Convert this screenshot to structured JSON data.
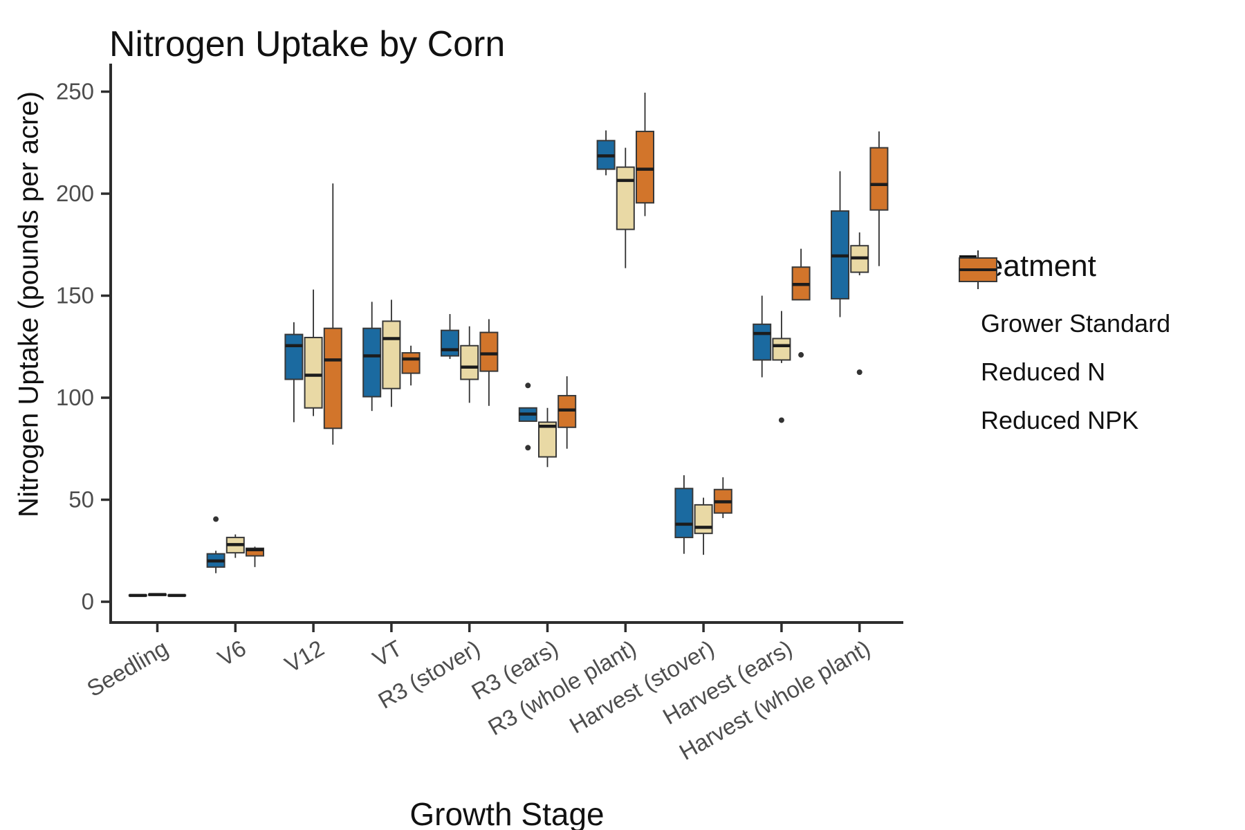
{
  "chart_data": {
    "type": "boxplot",
    "title": "Nitrogen Uptake by Corn",
    "xlabel": "Growth Stage",
    "ylabel": "Nitrogen Uptake (pounds per acre)",
    "legend_title": "Treatment",
    "legend_position": "right",
    "grid": false,
    "ylim": [
      -10,
      264
    ],
    "yticks": [
      0,
      50,
      100,
      150,
      200,
      250
    ],
    "axis_color": "#2d2d2d",
    "tick_label_color": "#4d4d4d",
    "categories": [
      "Seedling",
      "V6",
      "V12",
      "VT",
      "R3 (stover)",
      "R3 (ears)",
      "R3 (whole plant)",
      "Harvest (stover)",
      "Harvest (ears)",
      "Harvest (whole plant)"
    ],
    "series": [
      {
        "name": "Grower Standard",
        "color": "#1b6aa0"
      },
      {
        "name": "Reduced N",
        "color": "#e9d9a5"
      },
      {
        "name": "Reduced NPK",
        "color": "#d2752b"
      }
    ],
    "boxes": [
      [
        {
          "lo": 2.8,
          "q1": 2.9,
          "med": 3.1,
          "q3": 3.3,
          "hi": 3.4,
          "out": []
        },
        {
          "lo": 3.0,
          "q1": 3.2,
          "med": 3.5,
          "q3": 3.7,
          "hi": 3.8,
          "out": []
        },
        {
          "lo": 2.7,
          "q1": 2.9,
          "med": 3.1,
          "q3": 3.3,
          "hi": 3.4,
          "out": []
        }
      ],
      [
        {
          "lo": 14,
          "q1": 17,
          "med": 20,
          "q3": 23.5,
          "hi": 25,
          "out": [
            40.5
          ]
        },
        {
          "lo": 21.5,
          "q1": 24,
          "med": 28,
          "q3": 31.5,
          "hi": 33,
          "out": []
        },
        {
          "lo": 17,
          "q1": 22.5,
          "med": 25.5,
          "q3": 26.2,
          "hi": 27,
          "out": []
        }
      ],
      [
        {
          "lo": 88,
          "q1": 109,
          "med": 125.5,
          "q3": 131,
          "hi": 137,
          "out": []
        },
        {
          "lo": 91,
          "q1": 95,
          "med": 111,
          "q3": 129.5,
          "hi": 153,
          "out": []
        },
        {
          "lo": 77,
          "q1": 85,
          "med": 118.5,
          "q3": 134,
          "hi": 205,
          "out": []
        }
      ],
      [
        {
          "lo": 93.5,
          "q1": 100.5,
          "med": 120.5,
          "q3": 134,
          "hi": 147,
          "out": []
        },
        {
          "lo": 95.5,
          "q1": 104.5,
          "med": 129,
          "q3": 137.5,
          "hi": 148,
          "out": []
        },
        {
          "lo": 106,
          "q1": 112,
          "med": 119,
          "q3": 122,
          "hi": 125.5,
          "out": []
        }
      ],
      [
        {
          "lo": 119,
          "q1": 120.5,
          "med": 123.5,
          "q3": 133,
          "hi": 141,
          "out": []
        },
        {
          "lo": 97.5,
          "q1": 109,
          "med": 115,
          "q3": 125.5,
          "hi": 135,
          "out": []
        },
        {
          "lo": 96,
          "q1": 113,
          "med": 121.5,
          "q3": 132,
          "hi": 138.5,
          "out": []
        }
      ],
      [
        {
          "lo": 88.5,
          "q1": 88.5,
          "med": 92,
          "q3": 95,
          "hi": 95,
          "out": [
            106,
            75.5
          ]
        },
        {
          "lo": 66,
          "q1": 71,
          "med": 86,
          "q3": 88,
          "hi": 95,
          "out": []
        },
        {
          "lo": 75,
          "q1": 85.5,
          "med": 94,
          "q3": 101,
          "hi": 110.5,
          "out": []
        }
      ],
      [
        {
          "lo": 209,
          "q1": 212,
          "med": 218.5,
          "q3": 226,
          "hi": 231,
          "out": []
        },
        {
          "lo": 163.5,
          "q1": 182.5,
          "med": 206.5,
          "q3": 213,
          "hi": 222.5,
          "out": []
        },
        {
          "lo": 189,
          "q1": 195.5,
          "med": 212,
          "q3": 230.5,
          "hi": 249.5,
          "out": []
        }
      ],
      [
        {
          "lo": 23.5,
          "q1": 31.5,
          "med": 38,
          "q3": 55.5,
          "hi": 62,
          "out": []
        },
        {
          "lo": 23,
          "q1": 33.5,
          "med": 36.5,
          "q3": 47.5,
          "hi": 51,
          "out": []
        },
        {
          "lo": 41,
          "q1": 43.5,
          "med": 49,
          "q3": 55,
          "hi": 61,
          "out": []
        }
      ],
      [
        {
          "lo": 110,
          "q1": 118.5,
          "med": 131.5,
          "q3": 136,
          "hi": 150,
          "out": []
        },
        {
          "lo": 117,
          "q1": 118.5,
          "med": 125.5,
          "q3": 129,
          "hi": 142.5,
          "out": [
            89
          ]
        },
        {
          "lo": 148,
          "q1": 148,
          "med": 155.5,
          "q3": 164,
          "hi": 173,
          "out": [
            121
          ]
        }
      ],
      [
        {
          "lo": 139.5,
          "q1": 148.5,
          "med": 169.5,
          "q3": 191.5,
          "hi": 211,
          "out": []
        },
        {
          "lo": 160,
          "q1": 161.5,
          "med": 168.5,
          "q3": 174.5,
          "hi": 181,
          "out": [
            112.5
          ]
        },
        {
          "lo": 164.5,
          "q1": 192,
          "med": 204.5,
          "q3": 222.5,
          "hi": 230.5,
          "out": []
        }
      ]
    ]
  }
}
